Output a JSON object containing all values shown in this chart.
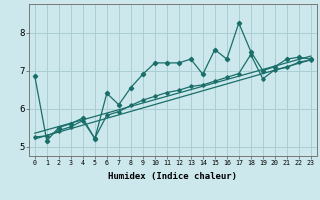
{
  "xlabel": "Humidex (Indice chaleur)",
  "bg_color": "#cce8ec",
  "grid_color": "#aacdd4",
  "line_color": "#1a6e6a",
  "xlim": [
    -0.5,
    23.5
  ],
  "ylim": [
    4.75,
    8.75
  ],
  "xticks": [
    0,
    1,
    2,
    3,
    4,
    5,
    6,
    7,
    8,
    9,
    10,
    11,
    12,
    13,
    14,
    15,
    16,
    17,
    18,
    19,
    20,
    21,
    22,
    23
  ],
  "yticks": [
    5,
    6,
    7,
    8
  ],
  "series1_x": [
    0,
    1,
    2,
    3,
    4,
    5,
    6,
    7,
    8,
    9,
    10,
    11,
    12,
    13,
    14,
    15,
    16,
    17,
    18,
    19,
    20,
    21,
    22,
    23
  ],
  "series1_y": [
    6.85,
    5.15,
    5.5,
    5.6,
    5.75,
    5.2,
    6.4,
    6.1,
    6.55,
    6.9,
    7.2,
    7.2,
    7.2,
    7.3,
    6.9,
    7.55,
    7.3,
    8.25,
    7.5,
    7.0,
    7.1,
    7.3,
    7.35,
    7.3
  ],
  "series2_x": [
    0,
    23
  ],
  "series2_y": [
    5.2,
    7.28
  ],
  "series3_x": [
    0,
    23
  ],
  "series3_y": [
    5.35,
    7.38
  ],
  "series4_x": [
    0,
    1,
    2,
    3,
    4,
    5,
    6,
    7,
    8,
    9,
    10,
    11,
    12,
    13,
    14,
    15,
    16,
    17,
    18,
    19,
    20,
    21,
    22,
    23
  ],
  "series4_y": [
    5.25,
    5.28,
    5.42,
    5.52,
    5.68,
    5.22,
    5.82,
    5.92,
    6.08,
    6.22,
    6.32,
    6.42,
    6.48,
    6.58,
    6.62,
    6.72,
    6.82,
    6.92,
    7.42,
    6.78,
    7.02,
    7.08,
    7.22,
    7.28
  ]
}
